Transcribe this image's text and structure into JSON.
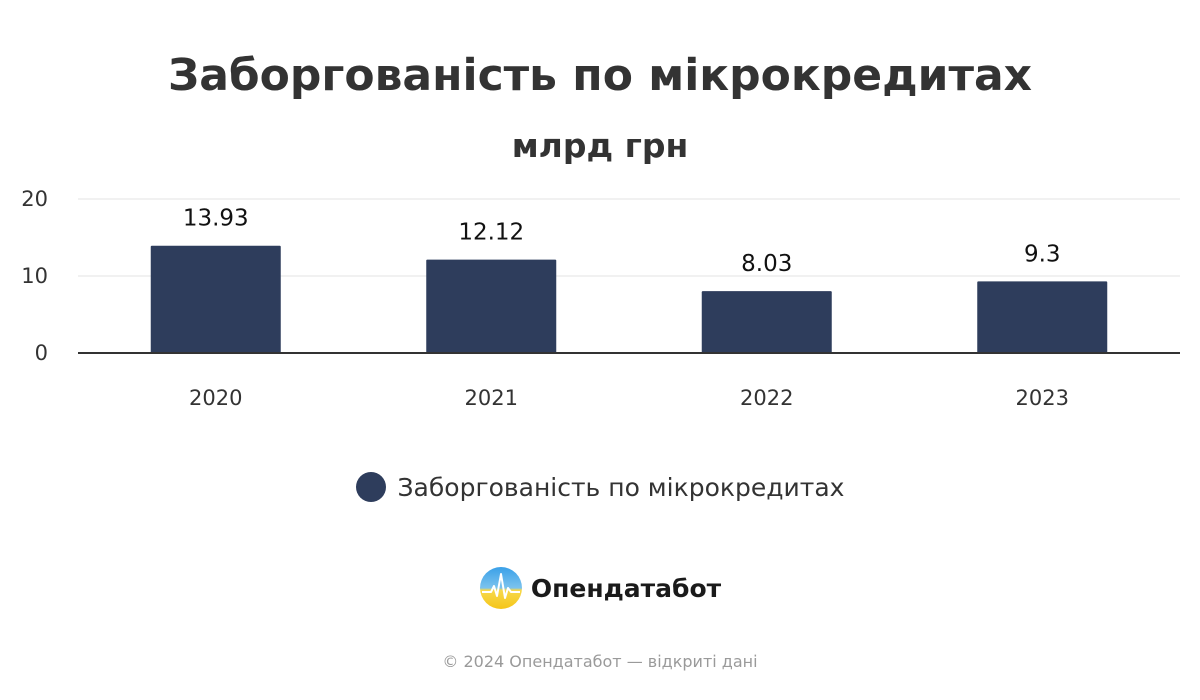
{
  "chart_data": {
    "type": "bar",
    "title": "Заборгованість по мікрокредитах",
    "subtitle": "млрд грн",
    "categories": [
      "2020",
      "2021",
      "2022",
      "2023"
    ],
    "series": [
      {
        "name": "Заборгованість по мікрокредитах",
        "values": [
          13.93,
          12.12,
          8.03,
          9.3
        ],
        "data_labels": [
          "13.93",
          "12.12",
          "8.03",
          "9.3"
        ]
      }
    ],
    "yticks": [
      0,
      10,
      20
    ],
    "ylim": [
      0,
      20
    ],
    "grid": true,
    "legend_position": "bottom",
    "bar_color": "#2e3d5c"
  },
  "brand": {
    "name": "Опендатабот",
    "logo_icon": "opendatabot-logo-icon"
  },
  "footer": {
    "text": "© 2024 Опендатабот — відкриті дані"
  }
}
